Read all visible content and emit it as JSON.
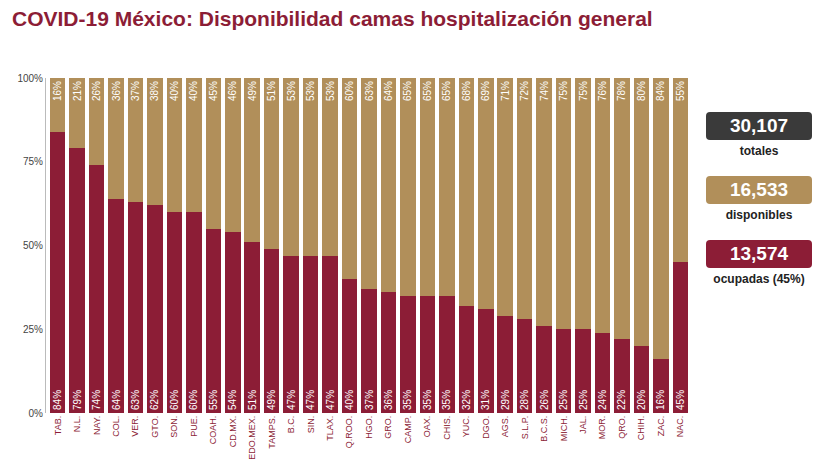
{
  "chart_data": {
    "type": "bar",
    "title": "COVID-19 México: Disponibilidad camas hospitalización general",
    "stacked": true,
    "data_labels": true,
    "grid": false,
    "categories": [
      "TAB.",
      "N.L.",
      "NAY.",
      "COL.",
      "VER.",
      "GTO.",
      "SON.",
      "PUE.",
      "COAH.",
      "CD.MX.",
      "EDO.MEX.",
      "TAMPS.",
      "B.C.",
      "SIN.",
      "TLAX.",
      "Q.ROO.",
      "HGO.",
      "GRO.",
      "CAMP.",
      "OAX.",
      "CHIS.",
      "YUC.",
      "DGO.",
      "AGS.",
      "S.L.P.",
      "B.C.S.",
      "MICH.",
      "JAL.",
      "MOR.",
      "QRO.",
      "CHIH.",
      "ZAC.",
      "NAC."
    ],
    "series": [
      {
        "color": "#8c1d36",
        "values": [
          84,
          79,
          74,
          64,
          63,
          62,
          60,
          60,
          55,
          54,
          51,
          49,
          47,
          47,
          47,
          40,
          37,
          36,
          35,
          35,
          35,
          32,
          31,
          29,
          28,
          26,
          25,
          25,
          24,
          22,
          20,
          16,
          45
        ],
        "value_labels": [
          "84%",
          "79%",
          "74%",
          "64%",
          "63%",
          "62%",
          "60%",
          "60%",
          "55%",
          "54%",
          "51%",
          "49%",
          "47%",
          "47%",
          "47%",
          "40%",
          "37%",
          "36%",
          "35%",
          "35%",
          "35%",
          "32%",
          "31%",
          "29%",
          "28%",
          "26%",
          "25%",
          "25%",
          "24%",
          "22%",
          "20%",
          "16%",
          "45%"
        ]
      },
      {
        "color": "#b18f5a",
        "values": [
          16,
          21,
          26,
          36,
          37,
          38,
          40,
          40,
          45,
          46,
          49,
          51,
          53,
          53,
          53,
          60,
          63,
          64,
          65,
          65,
          65,
          68,
          69,
          71,
          72,
          74,
          75,
          75,
          76,
          78,
          80,
          84,
          55
        ],
        "value_labels": [
          "16%",
          "21%",
          "26%",
          "36%",
          "37%",
          "38%",
          "40%",
          "40%",
          "45%",
          "46%",
          "49%",
          "51%",
          "53%",
          "53%",
          "53%",
          "60%",
          "63%",
          "64%",
          "65%",
          "65%",
          "65%",
          "68%",
          "69%",
          "71%",
          "72%",
          "74%",
          "75%",
          "75%",
          "76%",
          "78%",
          "80%",
          "84%",
          "55%"
        ]
      }
    ],
    "ylim": [
      0,
      100
    ],
    "yticks": [
      {
        "value": 0,
        "label": "0%"
      },
      {
        "value": 25,
        "label": "25%"
      },
      {
        "value": 50,
        "label": "50%"
      },
      {
        "value": 75,
        "label": "75%"
      },
      {
        "value": 100,
        "label": "100%"
      }
    ],
    "annotations": [
      {
        "value": "30,107",
        "label": "totales",
        "color": "#3a3a3a"
      },
      {
        "value": "16,533",
        "label": "disponibles",
        "color": "#b18f5a"
      },
      {
        "value": "13,574",
        "label": "ocupadas (45%)",
        "color": "#8c1d36"
      }
    ]
  }
}
